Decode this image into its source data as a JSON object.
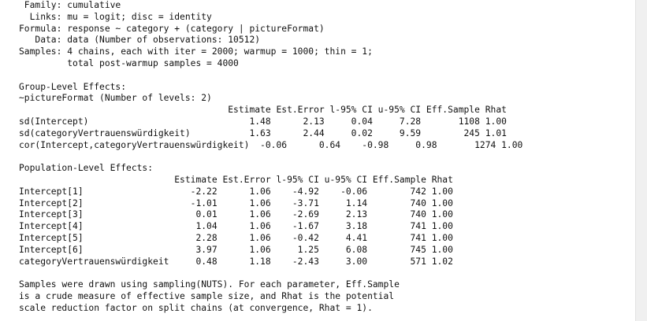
{
  "header": {
    "family": " Family: cumulative",
    "links": "  Links: mu = logit; disc = identity",
    "formula": "Formula: response ~ category + (category | pictureFormat)",
    "data": "   Data: data (Number of observations: 10512)",
    "samples": "Samples: 4 chains, each with iter = 2000; warmup = 1000; thin = 1;",
    "samples_total": "         total post-warmup samples = 4000"
  },
  "group_level": {
    "title": "Group-Level Effects:",
    "factor": "~pictureFormat (Number of levels: 2)",
    "header": "                                       Estimate Est.Error l-95% CI u-95% CI Eff.Sample Rhat",
    "rows": [
      "sd(Intercept)                              1.48      2.13     0.04     7.28       1108 1.00",
      "sd(categoryVertrauenswürdigkeit)           1.63      2.44     0.02     9.59        245 1.01",
      "cor(Intercept,categoryVertrauenswürdigkeit)  -0.06      0.64    -0.98     0.98       1274 1.00"
    ]
  },
  "population_level": {
    "title": "Population-Level Effects:",
    "header": "                             Estimate Est.Error l-95% CI u-95% CI Eff.Sample Rhat",
    "rows": [
      "Intercept[1]                    -2.22      1.06    -4.92    -0.06        742 1.00",
      "Intercept[2]                    -1.01      1.06    -3.71     1.14        740 1.00",
      "Intercept[3]                     0.01      1.06    -2.69     2.13        740 1.00",
      "Intercept[4]                     1.04      1.06    -1.67     3.18        741 1.00",
      "Intercept[5]                     2.28      1.06    -0.42     4.41        741 1.00",
      "Intercept[6]                     3.97      1.06     1.25     6.08        745 1.00",
      "categoryVertrauenswürdigkeit     0.48      1.18    -2.43     3.00        571 1.02"
    ]
  },
  "footer": {
    "line1": "Samples were drawn using sampling(NUTS). For each parameter, Eff.Sample",
    "line2": "is a crude measure of effective sample size, and Rhat is the potential",
    "line3": "scale reduction factor on split chains (at convergence, Rhat = 1)."
  }
}
